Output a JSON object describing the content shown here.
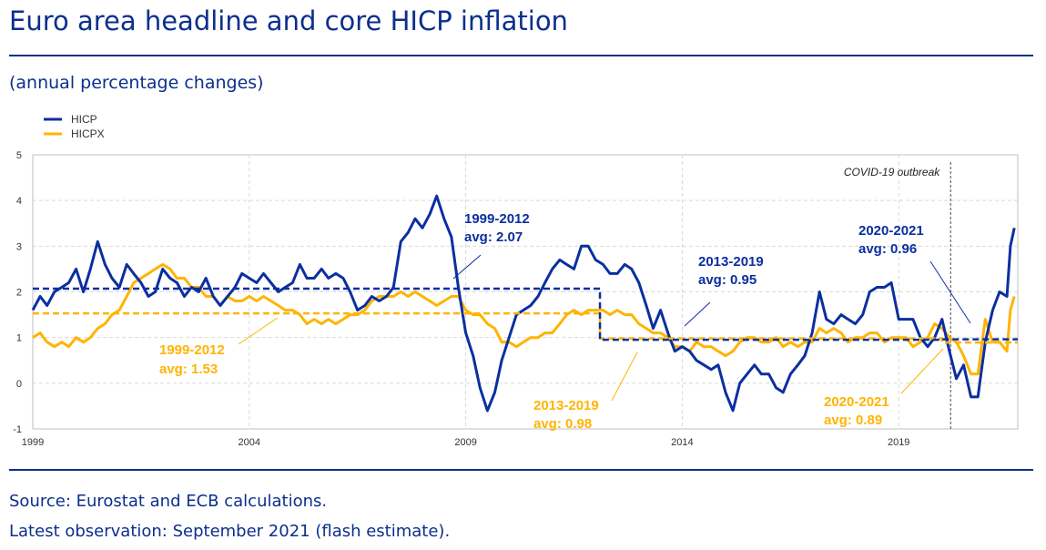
{
  "header": {
    "title": "Euro area headline and core HICP inflation",
    "subtitle": "(annual percentage changes)"
  },
  "footer": {
    "source": "Source: Eurostat and ECB calculations.",
    "latest": "Latest observation: September 2021 (flash estimate)."
  },
  "colors": {
    "hicp": "#0b2fa0",
    "hicpx": "#ffb400",
    "grid": "#d9d9d9",
    "axis_text": "#333333"
  },
  "chart_data": {
    "type": "line",
    "title": "Euro area headline and core HICP inflation",
    "ylabel": "annual percentage changes",
    "ylim": [
      -1,
      5
    ],
    "yticks": [
      5,
      4,
      3,
      2,
      1,
      0,
      -1
    ],
    "xlim": [
      1999.0,
      2021.75
    ],
    "xticks": [
      1999,
      2004,
      2009,
      2014,
      2019
    ],
    "xtick_labels": [
      "1999",
      "2004",
      "2009",
      "2014",
      "2019"
    ],
    "legend": [
      "HICP",
      "HICPX"
    ],
    "series": [
      {
        "name": "HICP",
        "points": [
          [
            1999.0,
            1.6
          ],
          [
            1999.17,
            1.9
          ],
          [
            1999.33,
            1.7
          ],
          [
            1999.5,
            2.0
          ],
          [
            1999.67,
            2.1
          ],
          [
            1999.83,
            2.2
          ],
          [
            2000.0,
            2.5
          ],
          [
            2000.17,
            2.0
          ],
          [
            2000.33,
            2.5
          ],
          [
            2000.5,
            3.1
          ],
          [
            2000.67,
            2.6
          ],
          [
            2000.83,
            2.3
          ],
          [
            2001.0,
            2.1
          ],
          [
            2001.17,
            2.6
          ],
          [
            2001.33,
            2.4
          ],
          [
            2001.5,
            2.2
          ],
          [
            2001.67,
            1.9
          ],
          [
            2001.83,
            2.0
          ],
          [
            2002.0,
            2.5
          ],
          [
            2002.17,
            2.3
          ],
          [
            2002.33,
            2.2
          ],
          [
            2002.5,
            1.9
          ],
          [
            2002.67,
            2.1
          ],
          [
            2002.83,
            2.0
          ],
          [
            2003.0,
            2.3
          ],
          [
            2003.17,
            1.9
          ],
          [
            2003.33,
            1.7
          ],
          [
            2003.5,
            1.9
          ],
          [
            2003.67,
            2.1
          ],
          [
            2003.83,
            2.4
          ],
          [
            2004.0,
            2.3
          ],
          [
            2004.17,
            2.2
          ],
          [
            2004.33,
            2.4
          ],
          [
            2004.5,
            2.2
          ],
          [
            2004.67,
            2.0
          ],
          [
            2004.83,
            2.1
          ],
          [
            2005.0,
            2.2
          ],
          [
            2005.17,
            2.6
          ],
          [
            2005.33,
            2.3
          ],
          [
            2005.5,
            2.3
          ],
          [
            2005.67,
            2.5
          ],
          [
            2005.83,
            2.3
          ],
          [
            2006.0,
            2.4
          ],
          [
            2006.17,
            2.3
          ],
          [
            2006.33,
            2.0
          ],
          [
            2006.5,
            1.6
          ],
          [
            2006.67,
            1.7
          ],
          [
            2006.83,
            1.9
          ],
          [
            2007.0,
            1.8
          ],
          [
            2007.17,
            1.9
          ],
          [
            2007.33,
            2.1
          ],
          [
            2007.5,
            3.1
          ],
          [
            2007.67,
            3.3
          ],
          [
            2007.83,
            3.6
          ],
          [
            2008.0,
            3.4
          ],
          [
            2008.17,
            3.7
          ],
          [
            2008.33,
            4.1
          ],
          [
            2008.5,
            3.6
          ],
          [
            2008.67,
            3.2
          ],
          [
            2008.83,
            2.1
          ],
          [
            2009.0,
            1.1
          ],
          [
            2009.17,
            0.6
          ],
          [
            2009.33,
            -0.1
          ],
          [
            2009.5,
            -0.6
          ],
          [
            2009.67,
            -0.2
          ],
          [
            2009.83,
            0.5
          ],
          [
            2010.0,
            1.0
          ],
          [
            2010.17,
            1.5
          ],
          [
            2010.33,
            1.6
          ],
          [
            2010.5,
            1.7
          ],
          [
            2010.67,
            1.9
          ],
          [
            2010.83,
            2.2
          ],
          [
            2011.0,
            2.5
          ],
          [
            2011.17,
            2.7
          ],
          [
            2011.33,
            2.6
          ],
          [
            2011.5,
            2.5
          ],
          [
            2011.67,
            3.0
          ],
          [
            2011.83,
            3.0
          ],
          [
            2012.0,
            2.7
          ],
          [
            2012.17,
            2.6
          ],
          [
            2012.33,
            2.4
          ],
          [
            2012.5,
            2.4
          ],
          [
            2012.67,
            2.6
          ],
          [
            2012.83,
            2.5
          ],
          [
            2013.0,
            2.2
          ],
          [
            2013.17,
            1.7
          ],
          [
            2013.33,
            1.2
          ],
          [
            2013.5,
            1.6
          ],
          [
            2013.67,
            1.1
          ],
          [
            2013.83,
            0.7
          ],
          [
            2014.0,
            0.8
          ],
          [
            2014.17,
            0.7
          ],
          [
            2014.33,
            0.5
          ],
          [
            2014.5,
            0.4
          ],
          [
            2014.67,
            0.3
          ],
          [
            2014.83,
            0.4
          ],
          [
            2015.0,
            -0.2
          ],
          [
            2015.17,
            -0.6
          ],
          [
            2015.33,
            0.0
          ],
          [
            2015.5,
            0.2
          ],
          [
            2015.67,
            0.4
          ],
          [
            2015.83,
            0.2
          ],
          [
            2016.0,
            0.2
          ],
          [
            2016.17,
            -0.1
          ],
          [
            2016.33,
            -0.2
          ],
          [
            2016.5,
            0.2
          ],
          [
            2016.67,
            0.4
          ],
          [
            2016.83,
            0.6
          ],
          [
            2017.0,
            1.1
          ],
          [
            2017.17,
            2.0
          ],
          [
            2017.33,
            1.4
          ],
          [
            2017.5,
            1.3
          ],
          [
            2017.67,
            1.5
          ],
          [
            2017.83,
            1.4
          ],
          [
            2018.0,
            1.3
          ],
          [
            2018.17,
            1.5
          ],
          [
            2018.33,
            2.0
          ],
          [
            2018.5,
            2.1
          ],
          [
            2018.67,
            2.1
          ],
          [
            2018.83,
            2.2
          ],
          [
            2019.0,
            1.4
          ],
          [
            2019.17,
            1.4
          ],
          [
            2019.33,
            1.4
          ],
          [
            2019.5,
            1.0
          ],
          [
            2019.67,
            0.8
          ],
          [
            2019.83,
            1.0
          ],
          [
            2020.0,
            1.4
          ],
          [
            2020.17,
            0.7
          ],
          [
            2020.33,
            0.1
          ],
          [
            2020.5,
            0.4
          ],
          [
            2020.67,
            -0.3
          ],
          [
            2020.83,
            -0.3
          ],
          [
            2021.0,
            0.9
          ],
          [
            2021.17,
            1.6
          ],
          [
            2021.33,
            2.0
          ],
          [
            2021.5,
            1.9
          ],
          [
            2021.58,
            3.0
          ],
          [
            2021.67,
            3.4
          ]
        ]
      },
      {
        "name": "HICPX",
        "points": [
          [
            1999.0,
            1.0
          ],
          [
            1999.17,
            1.1
          ],
          [
            1999.33,
            0.9
          ],
          [
            1999.5,
            0.8
          ],
          [
            1999.67,
            0.9
          ],
          [
            1999.83,
            0.8
          ],
          [
            2000.0,
            1.0
          ],
          [
            2000.17,
            0.9
          ],
          [
            2000.33,
            1.0
          ],
          [
            2000.5,
            1.2
          ],
          [
            2000.67,
            1.3
          ],
          [
            2000.83,
            1.5
          ],
          [
            2001.0,
            1.6
          ],
          [
            2001.17,
            1.9
          ],
          [
            2001.33,
            2.2
          ],
          [
            2001.5,
            2.3
          ],
          [
            2001.67,
            2.4
          ],
          [
            2001.83,
            2.5
          ],
          [
            2002.0,
            2.6
          ],
          [
            2002.17,
            2.5
          ],
          [
            2002.33,
            2.3
          ],
          [
            2002.5,
            2.3
          ],
          [
            2002.67,
            2.1
          ],
          [
            2002.83,
            2.1
          ],
          [
            2003.0,
            1.9
          ],
          [
            2003.17,
            1.9
          ],
          [
            2003.33,
            1.7
          ],
          [
            2003.5,
            1.9
          ],
          [
            2003.67,
            1.8
          ],
          [
            2003.83,
            1.8
          ],
          [
            2004.0,
            1.9
          ],
          [
            2004.17,
            1.8
          ],
          [
            2004.33,
            1.9
          ],
          [
            2004.5,
            1.8
          ],
          [
            2004.67,
            1.7
          ],
          [
            2004.83,
            1.6
          ],
          [
            2005.0,
            1.6
          ],
          [
            2005.17,
            1.5
          ],
          [
            2005.33,
            1.3
          ],
          [
            2005.5,
            1.4
          ],
          [
            2005.67,
            1.3
          ],
          [
            2005.83,
            1.4
          ],
          [
            2006.0,
            1.3
          ],
          [
            2006.17,
            1.4
          ],
          [
            2006.33,
            1.5
          ],
          [
            2006.5,
            1.5
          ],
          [
            2006.67,
            1.6
          ],
          [
            2006.83,
            1.8
          ],
          [
            2007.0,
            1.9
          ],
          [
            2007.17,
            1.9
          ],
          [
            2007.33,
            1.9
          ],
          [
            2007.5,
            2.0
          ],
          [
            2007.67,
            1.9
          ],
          [
            2007.83,
            2.0
          ],
          [
            2008.0,
            1.9
          ],
          [
            2008.17,
            1.8
          ],
          [
            2008.33,
            1.7
          ],
          [
            2008.5,
            1.8
          ],
          [
            2008.67,
            1.9
          ],
          [
            2008.83,
            1.9
          ],
          [
            2009.0,
            1.6
          ],
          [
            2009.17,
            1.5
          ],
          [
            2009.33,
            1.5
          ],
          [
            2009.5,
            1.3
          ],
          [
            2009.67,
            1.2
          ],
          [
            2009.83,
            0.9
          ],
          [
            2010.0,
            0.9
          ],
          [
            2010.17,
            0.8
          ],
          [
            2010.33,
            0.9
          ],
          [
            2010.5,
            1.0
          ],
          [
            2010.67,
            1.0
          ],
          [
            2010.83,
            1.1
          ],
          [
            2011.0,
            1.1
          ],
          [
            2011.17,
            1.3
          ],
          [
            2011.33,
            1.5
          ],
          [
            2011.5,
            1.6
          ],
          [
            2011.67,
            1.5
          ],
          [
            2011.83,
            1.6
          ],
          [
            2012.0,
            1.6
          ],
          [
            2012.17,
            1.6
          ],
          [
            2012.33,
            1.5
          ],
          [
            2012.5,
            1.6
          ],
          [
            2012.67,
            1.5
          ],
          [
            2012.83,
            1.5
          ],
          [
            2013.0,
            1.3
          ],
          [
            2013.17,
            1.2
          ],
          [
            2013.33,
            1.1
          ],
          [
            2013.5,
            1.1
          ],
          [
            2013.67,
            1.0
          ],
          [
            2013.83,
            0.8
          ],
          [
            2014.0,
            0.8
          ],
          [
            2014.17,
            0.7
          ],
          [
            2014.33,
            0.9
          ],
          [
            2014.5,
            0.8
          ],
          [
            2014.67,
            0.8
          ],
          [
            2014.83,
            0.7
          ],
          [
            2015.0,
            0.6
          ],
          [
            2015.17,
            0.7
          ],
          [
            2015.33,
            0.9
          ],
          [
            2015.5,
            1.0
          ],
          [
            2015.67,
            1.0
          ],
          [
            2015.83,
            0.9
          ],
          [
            2016.0,
            0.9
          ],
          [
            2016.17,
            1.0
          ],
          [
            2016.33,
            0.8
          ],
          [
            2016.5,
            0.9
          ],
          [
            2016.67,
            0.8
          ],
          [
            2016.83,
            0.9
          ],
          [
            2017.0,
            0.9
          ],
          [
            2017.17,
            1.2
          ],
          [
            2017.33,
            1.1
          ],
          [
            2017.5,
            1.2
          ],
          [
            2017.67,
            1.1
          ],
          [
            2017.83,
            0.9
          ],
          [
            2018.0,
            1.0
          ],
          [
            2018.17,
            1.0
          ],
          [
            2018.33,
            1.1
          ],
          [
            2018.5,
            1.1
          ],
          [
            2018.67,
            0.9
          ],
          [
            2018.83,
            1.0
          ],
          [
            2019.0,
            1.0
          ],
          [
            2019.17,
            1.0
          ],
          [
            2019.33,
            0.8
          ],
          [
            2019.5,
            0.9
          ],
          [
            2019.67,
            1.0
          ],
          [
            2019.83,
            1.3
          ],
          [
            2020.0,
            1.2
          ],
          [
            2020.17,
            1.0
          ],
          [
            2020.33,
            0.9
          ],
          [
            2020.5,
            0.6
          ],
          [
            2020.67,
            0.2
          ],
          [
            2020.83,
            0.2
          ],
          [
            2021.0,
            1.4
          ],
          [
            2021.17,
            0.9
          ],
          [
            2021.33,
            0.9
          ],
          [
            2021.5,
            0.7
          ],
          [
            2021.58,
            1.6
          ],
          [
            2021.67,
            1.9
          ]
        ]
      }
    ],
    "averages": [
      {
        "series": "HICP",
        "period": "1999-2012",
        "value": 2.07,
        "x_start": 1999.0,
        "x_end": 2012.1
      },
      {
        "series": "HICP",
        "period": "2013-2019",
        "value": 0.95,
        "x_start": 2012.1,
        "x_end": 2020.0
      },
      {
        "series": "HICP",
        "period": "2020-2021",
        "value": 0.96,
        "x_start": 2020.0,
        "x_end": 2021.75
      },
      {
        "series": "HICPX",
        "period": "1999-2012",
        "value": 1.53,
        "x_start": 1999.0,
        "x_end": 2012.1
      },
      {
        "series": "HICPX",
        "period": "2013-2019",
        "value": 0.98,
        "x_start": 2012.1,
        "x_end": 2020.0
      },
      {
        "series": "HICPX",
        "period": "2020-2021",
        "value": 0.89,
        "x_start": 2020.0,
        "x_end": 2021.75
      }
    ],
    "annotations": {
      "covid": {
        "label": "COVID-19 outbreak",
        "x": 2020.2
      },
      "hicp_1999_2012": {
        "line1": "1999-2012",
        "line2": "avg: 2.07"
      },
      "hicp_2013_2019": {
        "line1": "2013-2019",
        "line2": "avg: 0.95"
      },
      "hicp_2020_2021": {
        "line1": "2020-2021",
        "line2": "avg: 0.96"
      },
      "hicpx_1999_2012": {
        "line1": "1999-2012",
        "line2": "avg: 1.53"
      },
      "hicpx_2013_2019": {
        "line1": "2013-2019",
        "line2": "avg: 0.98"
      },
      "hicpx_2020_2021": {
        "line1": "2020-2021",
        "line2": "avg: 0.89"
      }
    }
  }
}
